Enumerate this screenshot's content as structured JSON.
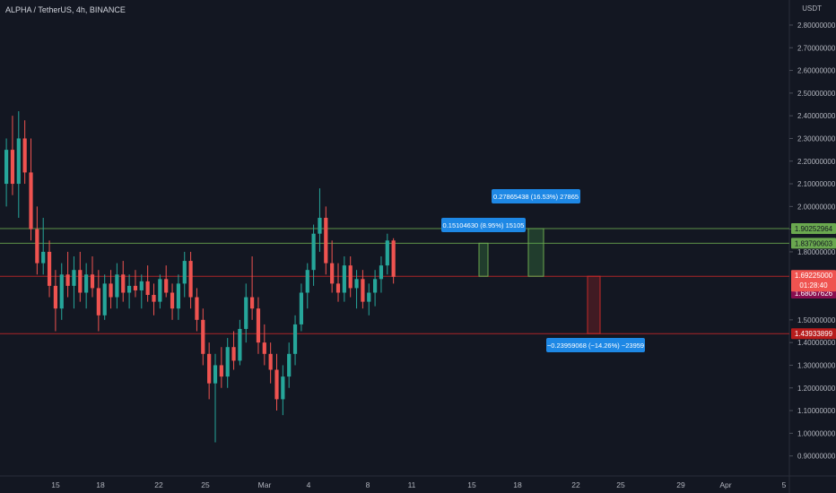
{
  "header": {
    "title": "ALPHA / TetherUS, 4h, BINANCE",
    "currency": "USDT"
  },
  "colors": {
    "background": "#131722",
    "up": "#26a69a",
    "down": "#ef5350",
    "resistance": "#6aa84f",
    "support": "#c62828",
    "callout": "#1e88e5"
  },
  "chart_data": {
    "type": "candlestick",
    "title": "ALPHA / TetherUS, 4h, BINANCE",
    "ylabel": "USDT",
    "ylim": [
      0.86,
      2.84
    ],
    "y_ticks": [
      "0.90000000",
      "1.00000000",
      "1.10000000",
      "1.20000000",
      "1.30000000",
      "1.40000000",
      "1.50000000",
      "1.80000000",
      "1.90000000",
      "2.00000000",
      "2.10000000",
      "2.20000000",
      "2.30000000",
      "2.40000000",
      "2.50000000",
      "2.60000000",
      "2.70000000",
      "2.80000000"
    ],
    "x_ticks": [
      "15",
      "18",
      "22",
      "25",
      "Mar",
      "4",
      "8",
      "11",
      "15",
      "18",
      "22",
      "25",
      "29",
      "Apr",
      "5"
    ],
    "candles": [
      [
        2.1,
        2.3,
        2.0,
        2.25
      ],
      [
        2.25,
        2.4,
        2.05,
        2.1
      ],
      [
        2.1,
        2.42,
        1.95,
        2.3
      ],
      [
        2.3,
        2.38,
        2.1,
        2.15
      ],
      [
        2.15,
        2.3,
        1.85,
        1.9
      ],
      [
        1.9,
        2.0,
        1.7,
        1.75
      ],
      [
        1.75,
        1.95,
        1.7,
        1.8
      ],
      [
        1.8,
        1.85,
        1.6,
        1.65
      ],
      [
        1.65,
        1.72,
        1.45,
        1.55
      ],
      [
        1.55,
        1.75,
        1.5,
        1.7
      ],
      [
        1.7,
        1.8,
        1.6,
        1.65
      ],
      [
        1.65,
        1.78,
        1.55,
        1.72
      ],
      [
        1.72,
        1.8,
        1.58,
        1.62
      ],
      [
        1.62,
        1.75,
        1.55,
        1.7
      ],
      [
        1.7,
        1.78,
        1.6,
        1.64
      ],
      [
        1.64,
        1.72,
        1.45,
        1.52
      ],
      [
        1.52,
        1.7,
        1.5,
        1.66
      ],
      [
        1.66,
        1.72,
        1.55,
        1.6
      ],
      [
        1.6,
        1.75,
        1.55,
        1.7
      ],
      [
        1.7,
        1.76,
        1.58,
        1.62
      ],
      [
        1.62,
        1.7,
        1.55,
        1.65
      ],
      [
        1.65,
        1.72,
        1.6,
        1.63
      ],
      [
        1.63,
        1.7,
        1.55,
        1.67
      ],
      [
        1.67,
        1.74,
        1.58,
        1.61
      ],
      [
        1.61,
        1.66,
        1.52,
        1.58
      ],
      [
        1.58,
        1.7,
        1.55,
        1.68
      ],
      [
        1.68,
        1.74,
        1.6,
        1.62
      ],
      [
        1.62,
        1.66,
        1.5,
        1.55
      ],
      [
        1.55,
        1.7,
        1.5,
        1.66
      ],
      [
        1.66,
        1.8,
        1.6,
        1.76
      ],
      [
        1.76,
        1.8,
        1.55,
        1.6
      ],
      [
        1.6,
        1.64,
        1.45,
        1.5
      ],
      [
        1.5,
        1.55,
        1.3,
        1.35
      ],
      [
        1.35,
        1.4,
        1.15,
        1.22
      ],
      [
        1.22,
        1.35,
        0.96,
        1.3
      ],
      [
        1.3,
        1.38,
        1.2,
        1.25
      ],
      [
        1.25,
        1.42,
        1.2,
        1.38
      ],
      [
        1.38,
        1.45,
        1.28,
        1.32
      ],
      [
        1.32,
        1.5,
        1.3,
        1.46
      ],
      [
        1.46,
        1.66,
        1.4,
        1.6
      ],
      [
        1.6,
        1.78,
        1.5,
        1.55
      ],
      [
        1.55,
        1.6,
        1.35,
        1.4
      ],
      [
        1.4,
        1.48,
        1.3,
        1.35
      ],
      [
        1.35,
        1.4,
        1.22,
        1.28
      ],
      [
        1.28,
        1.35,
        1.1,
        1.15
      ],
      [
        1.15,
        1.3,
        1.08,
        1.25
      ],
      [
        1.25,
        1.4,
        1.2,
        1.35
      ],
      [
        1.35,
        1.52,
        1.3,
        1.48
      ],
      [
        1.48,
        1.66,
        1.45,
        1.62
      ],
      [
        1.62,
        1.75,
        1.55,
        1.72
      ],
      [
        1.72,
        1.92,
        1.65,
        1.88
      ],
      [
        1.88,
        2.08,
        1.8,
        1.95
      ],
      [
        1.95,
        2.0,
        1.7,
        1.75
      ],
      [
        1.75,
        1.85,
        1.62,
        1.66
      ],
      [
        1.66,
        1.75,
        1.58,
        1.62
      ],
      [
        1.62,
        1.78,
        1.58,
        1.74
      ],
      [
        1.74,
        1.78,
        1.6,
        1.64
      ],
      [
        1.64,
        1.72,
        1.55,
        1.68
      ],
      [
        1.68,
        1.72,
        1.55,
        1.58
      ],
      [
        1.58,
        1.66,
        1.52,
        1.62
      ],
      [
        1.62,
        1.72,
        1.56,
        1.68
      ],
      [
        1.68,
        1.78,
        1.62,
        1.74
      ],
      [
        1.74,
        1.88,
        1.7,
        1.85
      ],
      [
        1.85,
        1.86,
        1.66,
        1.69
      ]
    ]
  },
  "levels": {
    "upper_resistance": "1.90252964",
    "lower_resistance": "1.83790603",
    "current_price": "1.69225000",
    "countdown": "01:28:40",
    "current_low_label": "1.68067626",
    "support": "1.43933899"
  },
  "callouts": {
    "upper_target": "0.27865438 (16.53%) 27865",
    "lower_target": "0.15104630 (8.95%) 15105",
    "stop": "−0.23959068 (−14.26%) −23959"
  }
}
